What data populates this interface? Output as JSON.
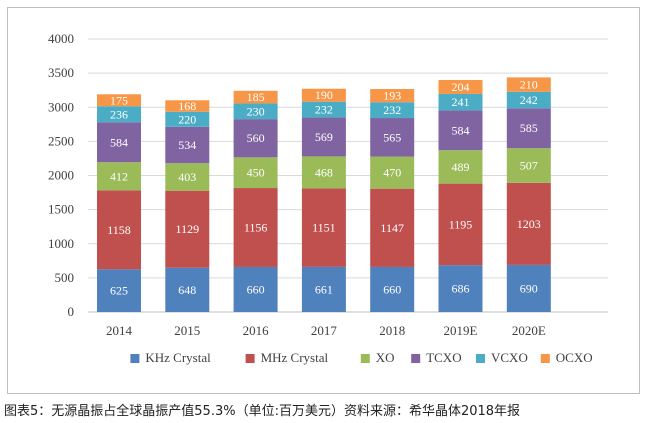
{
  "caption": "图表5：无源晶振占全球晶振产值55.3%（单位:百万美元）资料来源：希华晶体2018年报",
  "chart_data": {
    "type": "bar",
    "stacked": true,
    "title": "",
    "xlabel": "",
    "ylabel": "",
    "ylim": [
      0,
      4000
    ],
    "yticks": [
      0,
      500,
      1000,
      1500,
      2000,
      2500,
      3000,
      3500,
      4000
    ],
    "grid": true,
    "legend_position": "bottom",
    "categories": [
      "2014",
      "2015",
      "2016",
      "2017",
      "2018",
      "2019E",
      "2020E"
    ],
    "series": [
      {
        "name": "KHz Crystal",
        "color": "#4f81bd",
        "values": [
          625,
          648,
          660,
          661,
          660,
          686,
          690
        ]
      },
      {
        "name": "MHz Crystal",
        "color": "#c0504d",
        "values": [
          1158,
          1129,
          1156,
          1151,
          1147,
          1195,
          1203
        ]
      },
      {
        "name": "XO",
        "color": "#9bbb59",
        "values": [
          412,
          403,
          450,
          468,
          470,
          489,
          507
        ]
      },
      {
        "name": "TCXO",
        "color": "#8064a2",
        "values": [
          584,
          534,
          560,
          569,
          565,
          584,
          585
        ]
      },
      {
        "name": "VCXO",
        "color": "#4bacc6",
        "values": [
          236,
          220,
          230,
          232,
          232,
          241,
          242
        ]
      },
      {
        "name": "OCXO",
        "color": "#f79646",
        "values": [
          175,
          168,
          185,
          190,
          193,
          204,
          210
        ]
      }
    ]
  }
}
